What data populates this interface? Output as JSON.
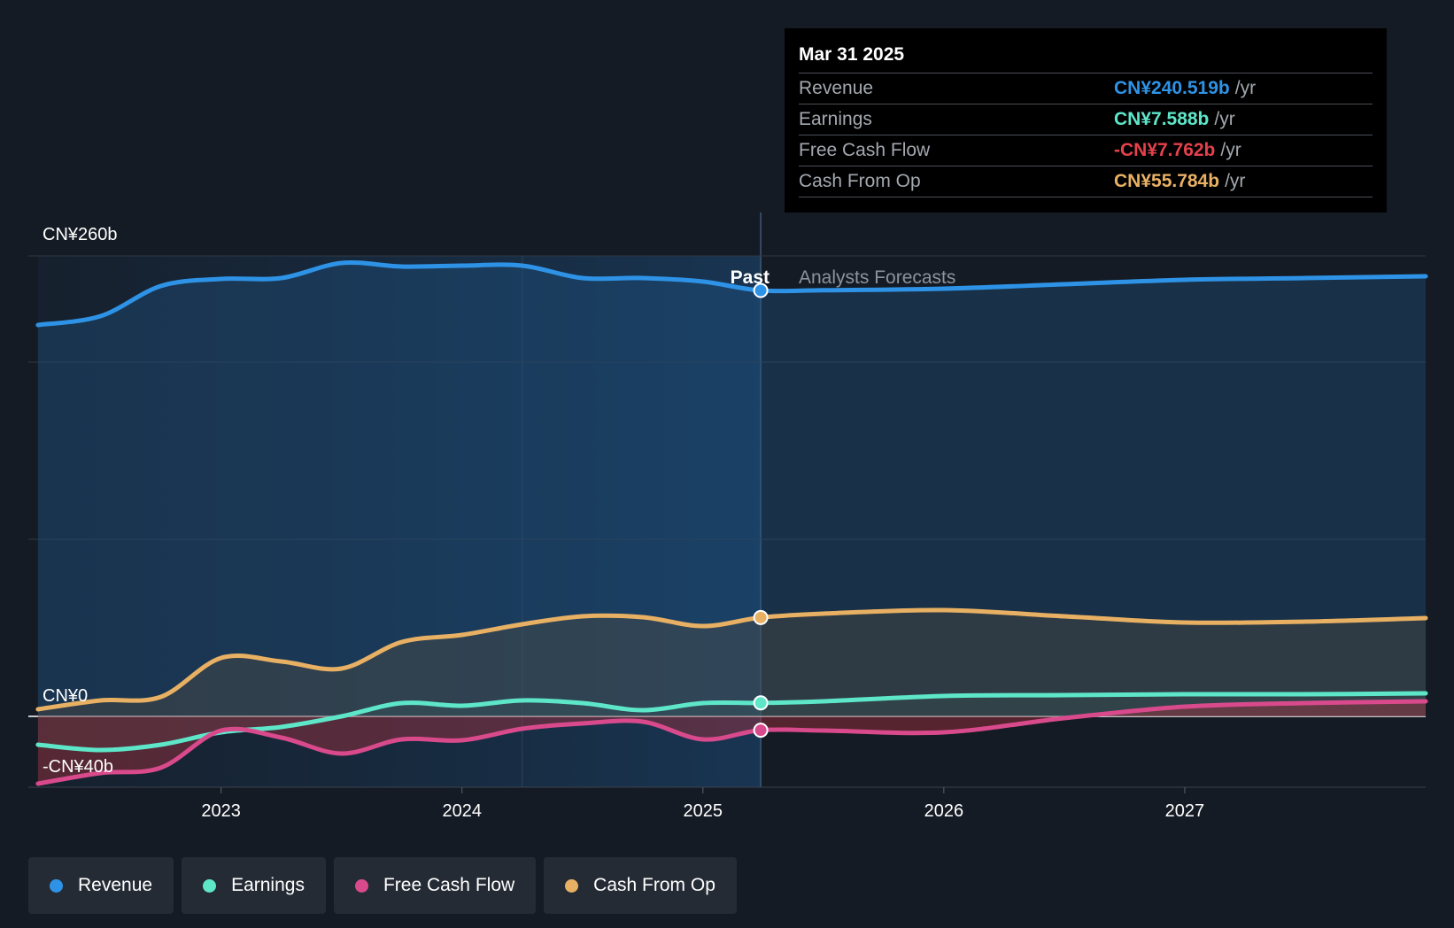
{
  "chart_data": {
    "type": "area",
    "y_axis_labels": [
      "CN¥260b",
      "CN¥0",
      "-CN¥40b"
    ],
    "ylim": [
      -40,
      260
    ],
    "x_ticks": [
      "2023",
      "2024",
      "2025",
      "2026",
      "2027"
    ],
    "x_tick_values": [
      2023,
      2024,
      2025,
      2026,
      2027
    ],
    "xlim": [
      2022.2,
      2028.0
    ],
    "divider_x": 2025.24,
    "past_label": "Past",
    "forecast_label": "Analysts Forecasts",
    "series": [
      {
        "name": "Revenue",
        "color": "#2e93e6",
        "points": [
          [
            2022.24,
            221
          ],
          [
            2022.5,
            226
          ],
          [
            2022.75,
            243
          ],
          [
            2023.0,
            247
          ],
          [
            2023.25,
            247.5
          ],
          [
            2023.5,
            256
          ],
          [
            2023.75,
            254
          ],
          [
            2024.0,
            254.5
          ],
          [
            2024.25,
            254.5
          ],
          [
            2024.5,
            247.5
          ],
          [
            2024.75,
            247.5
          ],
          [
            2025.0,
            245.5
          ],
          [
            2025.24,
            240.5
          ],
          [
            2025.5,
            240.6
          ],
          [
            2026.0,
            241.5
          ],
          [
            2026.5,
            244
          ],
          [
            2027.0,
            246.5
          ],
          [
            2027.5,
            247.5
          ],
          [
            2028.0,
            248.5
          ]
        ]
      },
      {
        "name": "Earnings",
        "color": "#5ee6c9",
        "points": [
          [
            2022.24,
            -16
          ],
          [
            2022.5,
            -19
          ],
          [
            2022.75,
            -16
          ],
          [
            2023.0,
            -9
          ],
          [
            2023.25,
            -6
          ],
          [
            2023.5,
            0
          ],
          [
            2023.75,
            7.5
          ],
          [
            2024.0,
            6
          ],
          [
            2024.25,
            9
          ],
          [
            2024.5,
            7.5
          ],
          [
            2024.75,
            3.5
          ],
          [
            2025.0,
            7.5
          ],
          [
            2025.24,
            7.6
          ],
          [
            2025.5,
            8.5
          ],
          [
            2026.0,
            11.5
          ],
          [
            2026.5,
            12
          ],
          [
            2027.0,
            12.5
          ],
          [
            2027.5,
            12.5
          ],
          [
            2028.0,
            13
          ]
        ]
      },
      {
        "name": "Free Cash Flow",
        "color": "#d94a8c",
        "points": [
          [
            2022.24,
            -38
          ],
          [
            2022.5,
            -32
          ],
          [
            2022.75,
            -29
          ],
          [
            2023.0,
            -8
          ],
          [
            2023.25,
            -12
          ],
          [
            2023.5,
            -21
          ],
          [
            2023.75,
            -13
          ],
          [
            2024.0,
            -13.5
          ],
          [
            2024.25,
            -7
          ],
          [
            2024.5,
            -4
          ],
          [
            2024.75,
            -3
          ],
          [
            2025.0,
            -13
          ],
          [
            2025.24,
            -7.8
          ],
          [
            2025.5,
            -8
          ],
          [
            2026.0,
            -9
          ],
          [
            2026.5,
            -1
          ],
          [
            2027.0,
            5.5
          ],
          [
            2027.5,
            7.5
          ],
          [
            2028.0,
            8.5
          ]
        ]
      },
      {
        "name": "Cash From Op",
        "color": "#e8b063",
        "points": [
          [
            2022.24,
            4
          ],
          [
            2022.5,
            9
          ],
          [
            2022.75,
            11
          ],
          [
            2023.0,
            33
          ],
          [
            2023.25,
            31
          ],
          [
            2023.5,
            27
          ],
          [
            2023.75,
            42
          ],
          [
            2024.0,
            46
          ],
          [
            2024.25,
            52
          ],
          [
            2024.5,
            56.5
          ],
          [
            2024.75,
            56
          ],
          [
            2025.0,
            51
          ],
          [
            2025.24,
            55.8
          ],
          [
            2025.5,
            58
          ],
          [
            2026.0,
            60
          ],
          [
            2026.5,
            56.5
          ],
          [
            2027.0,
            53
          ],
          [
            2027.5,
            53.5
          ],
          [
            2028.0,
            55.5
          ]
        ]
      }
    ]
  },
  "tooltip": {
    "date": "Mar 31 2025",
    "unit": "/yr",
    "rows": [
      {
        "label": "Revenue",
        "value": "CN¥240.519b",
        "color": "#2e93e6"
      },
      {
        "label": "Earnings",
        "value": "CN¥7.588b",
        "color": "#5ee6c9"
      },
      {
        "label": "Free Cash Flow",
        "value": "-CN¥7.762b",
        "color": "#e5414d"
      },
      {
        "label": "Cash From Op",
        "value": "CN¥55.784b",
        "color": "#e8b063"
      }
    ]
  },
  "legend": [
    {
      "label": "Revenue",
      "color": "#2e93e6"
    },
    {
      "label": "Earnings",
      "color": "#5ee6c9"
    },
    {
      "label": "Free Cash Flow",
      "color": "#d94a8c"
    },
    {
      "label": "Cash From Op",
      "color": "#e8b063"
    }
  ]
}
